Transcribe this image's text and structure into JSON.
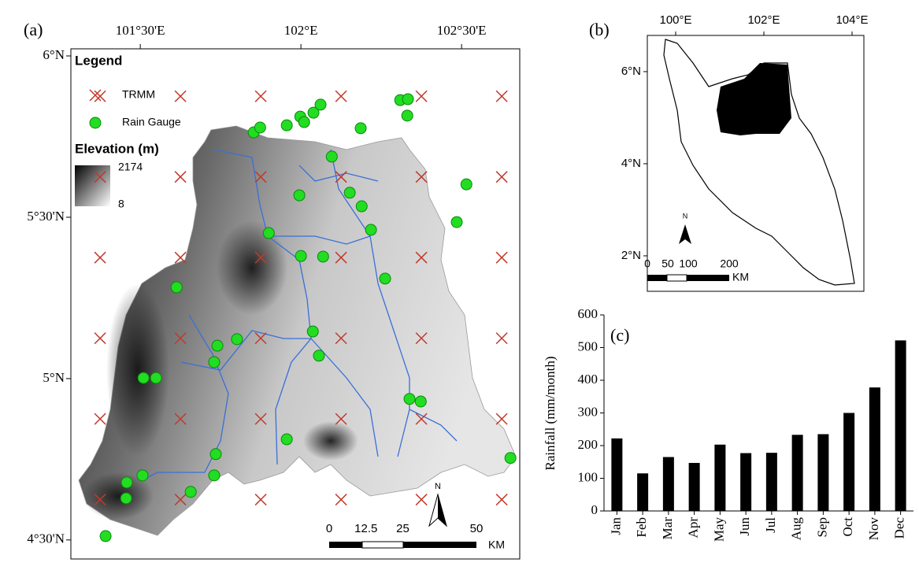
{
  "chart_data": {
    "type": "bar",
    "title": "(c)",
    "ylabel": "Rainfall (mm/month)",
    "categories": [
      "Jan",
      "Feb",
      "Mar",
      "Apr",
      "May",
      "Jun",
      "Jul",
      "Aug",
      "Sep",
      "Oct",
      "Nov",
      "Dec"
    ],
    "values": [
      222,
      115,
      165,
      147,
      203,
      177,
      178,
      233,
      235,
      300,
      378,
      522
    ],
    "color": "#000000",
    "ylim": [
      0,
      600
    ],
    "yticks": [
      0,
      100,
      200,
      300,
      400,
      500,
      600
    ]
  },
  "map_a": {
    "label": "(a)",
    "xlim": [
      101.284,
      102.681
    ],
    "ylim": [
      4.441,
      6.022
    ],
    "xticks": [
      {
        "value": 101.5,
        "label": "101°30'E"
      },
      {
        "value": 102,
        "label": "102°E"
      },
      {
        "value": 102.5,
        "label": "102°30'E"
      }
    ],
    "yticks": [
      {
        "value": 6,
        "label": "6°N"
      },
      {
        "value": 5.5,
        "label": "5°30'N"
      },
      {
        "value": 5,
        "label": "5°N"
      },
      {
        "value": 4.5,
        "label": "4°30'N"
      }
    ],
    "legend": {
      "title": "Legend",
      "trmm": "TRMM",
      "gauge": "Rain Gauge"
    },
    "elevation": {
      "title": "Elevation (m)",
      "max": 2174,
      "min": 8
    },
    "trmm": {
      "lon": [
        101.375,
        101.625,
        101.875,
        102.125,
        102.375,
        102.625
      ],
      "lat": [
        5.875,
        5.625,
        5.375,
        5.125,
        4.875,
        4.625
      ]
    },
    "gauges": {
      "lon": [
        101.853,
        101.873,
        101.956,
        101.998,
        102.01,
        102.039,
        102.061,
        102.186,
        102.309,
        102.333,
        102.331,
        102.096,
        101.995,
        102.152,
        102.189,
        102.515,
        101.9,
        102.218,
        102.0,
        102.069,
        102.485,
        102.262,
        101.613,
        101.801,
        101.74,
        102.037,
        102.056,
        101.73,
        101.51,
        101.549,
        102.338,
        102.373,
        101.956,
        101.735,
        101.507,
        101.73,
        101.657,
        101.458,
        101.456,
        101.392,
        102.652
      ],
      "lat": [
        5.763,
        5.778,
        5.785,
        5.812,
        5.795,
        5.824,
        5.849,
        5.776,
        5.863,
        5.866,
        5.815,
        5.688,
        5.568,
        5.576,
        5.534,
        5.602,
        5.451,
        5.461,
        5.38,
        5.378,
        5.485,
        5.31,
        5.283,
        5.122,
        5.102,
        5.146,
        5.071,
        5.051,
        5.002,
        5.002,
        4.937,
        4.929,
        4.812,
        4.766,
        4.7,
        4.7,
        4.649,
        4.678,
        4.629,
        4.512,
        4.754
      ]
    },
    "scale": {
      "labels": [
        0,
        12.5,
        25,
        50
      ],
      "unit": "KM"
    },
    "north": "N"
  },
  "map_b": {
    "label": "(b)",
    "xlim": [
      99.357,
      104.268
    ],
    "ylim": [
      1.23,
      6.786
    ],
    "xticks": [
      {
        "value": 100,
        "label": "100°E"
      },
      {
        "value": 102,
        "label": "102°E"
      },
      {
        "value": 104,
        "label": "104°E"
      }
    ],
    "yticks": [
      {
        "value": 6,
        "label": "6°N"
      },
      {
        "value": 4,
        "label": "4°N"
      },
      {
        "value": 2,
        "label": "2°N"
      }
    ],
    "scale": {
      "labels": [
        0,
        50,
        100,
        200
      ],
      "unit": "KM"
    },
    "north": "N"
  }
}
